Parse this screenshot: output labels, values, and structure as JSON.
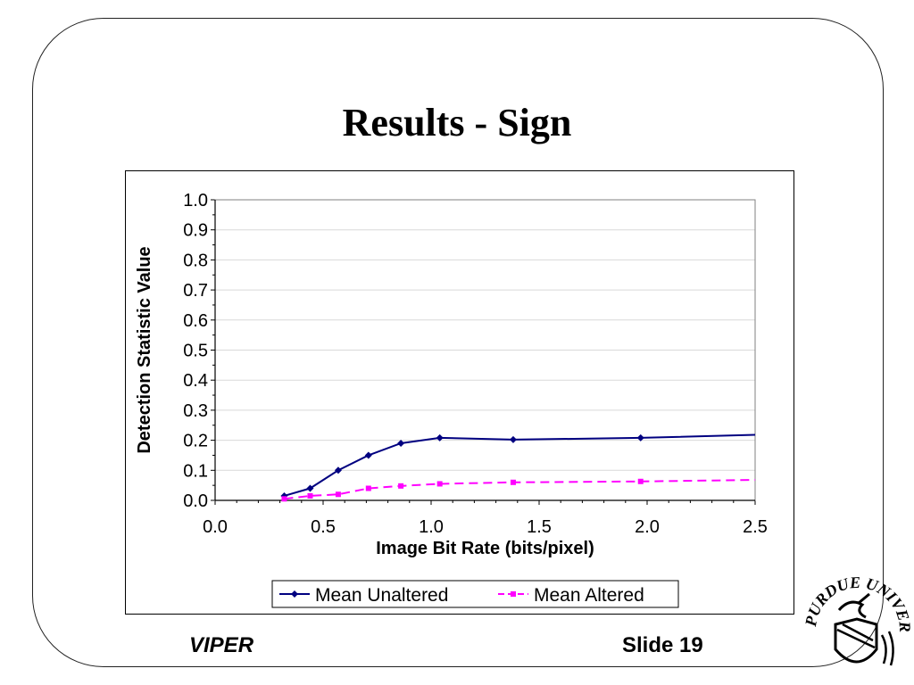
{
  "slide": {
    "title": "Results - Sign",
    "footer_left": "VIPER",
    "footer_right": "Slide 19",
    "logo_text": "PURDUE UNIVERSITY"
  },
  "colors": {
    "frame": "#222222",
    "unaltered": "#000080",
    "altered": "#ff00ff",
    "grid": "#d9d9d9"
  },
  "chart_data": {
    "type": "line",
    "title": "",
    "xlabel": "Image Bit Rate (bits/pixel)",
    "ylabel": "Detection Statistic Value",
    "xlim": [
      0.0,
      2.5
    ],
    "ylim": [
      0.0,
      1.0
    ],
    "xticks": [
      "0.0",
      "0.5",
      "1.0",
      "1.5",
      "2.0",
      "2.5"
    ],
    "yticks": [
      "0.0",
      "0.1",
      "0.2",
      "0.3",
      "0.4",
      "0.5",
      "0.6",
      "0.7",
      "0.8",
      "0.9",
      "1.0"
    ],
    "grid": "horizontal",
    "legend_position": "bottom",
    "series": [
      {
        "name": "Mean Unaltered",
        "style": "solid",
        "marker": "diamond",
        "points": [
          [
            0.32,
            0.015
          ],
          [
            0.44,
            0.04
          ],
          [
            0.57,
            0.1
          ],
          [
            0.71,
            0.15
          ],
          [
            0.86,
            0.19
          ],
          [
            1.04,
            0.208
          ],
          [
            1.38,
            0.202
          ],
          [
            1.97,
            0.208
          ],
          [
            2.5,
            0.218
          ]
        ]
      },
      {
        "name": "Mean Altered",
        "style": "dashed",
        "marker": "square",
        "points": [
          [
            0.32,
            0.005
          ],
          [
            0.44,
            0.015
          ],
          [
            0.57,
            0.02
          ],
          [
            0.71,
            0.04
          ],
          [
            0.86,
            0.048
          ],
          [
            1.04,
            0.055
          ],
          [
            1.38,
            0.06
          ],
          [
            1.97,
            0.063
          ],
          [
            2.5,
            0.068
          ]
        ]
      }
    ]
  }
}
